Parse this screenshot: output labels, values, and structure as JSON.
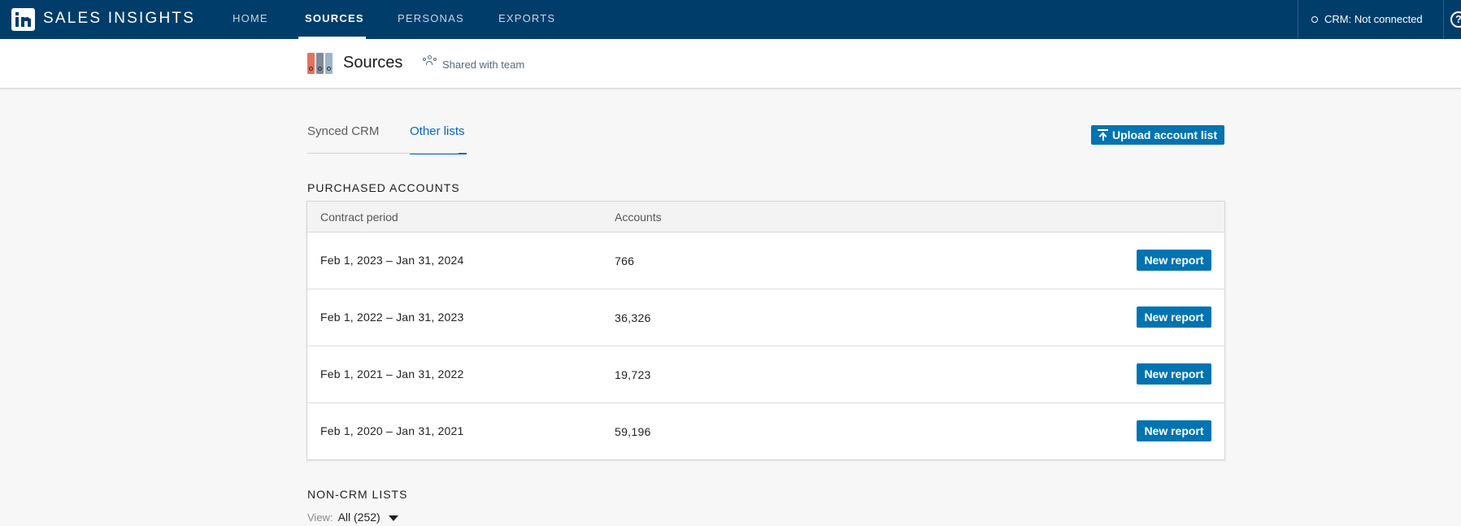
{
  "app": {
    "title": "SALES INSIGHTS",
    "logo_icon": "linkedin-logo-icon"
  },
  "nav": {
    "items": [
      {
        "label": "HOME",
        "active": false
      },
      {
        "label": "SOURCES",
        "active": true
      },
      {
        "label": "PERSONAS",
        "active": false
      },
      {
        "label": "EXPORTS",
        "active": false
      }
    ],
    "crm_status": "CRM: Not connected",
    "help_glyph": "?"
  },
  "page": {
    "title": "Sources",
    "shared": "Shared with team"
  },
  "tabs": [
    {
      "label": "Synced CRM",
      "active": false
    },
    {
      "label": "Other lists",
      "active": true
    }
  ],
  "upload_button": "Upload account list",
  "purchased": {
    "heading": "PURCHASED ACCOUNTS",
    "columns": [
      "Contract period",
      "Accounts"
    ],
    "rows": [
      {
        "period": "Feb 1, 2023 – Jan 31, 2024",
        "accounts": "766",
        "action": "New report"
      },
      {
        "period": "Feb 1, 2022 – Jan 31, 2023",
        "accounts": "36,326",
        "action": "New report"
      },
      {
        "period": "Feb 1, 2021 – Jan 31, 2022",
        "accounts": "19,723",
        "action": "New report"
      },
      {
        "period": "Feb 1, 2020 – Jan 31, 2021",
        "accounts": "59,196",
        "action": "New report"
      }
    ]
  },
  "non_crm": {
    "heading": "NON-CRM LISTS",
    "view_label": "View:",
    "view_value": "All (252)"
  },
  "colors": {
    "nav_bg": "#003d6a",
    "accent": "#0a66c2",
    "button_bg": "#0073b1"
  }
}
